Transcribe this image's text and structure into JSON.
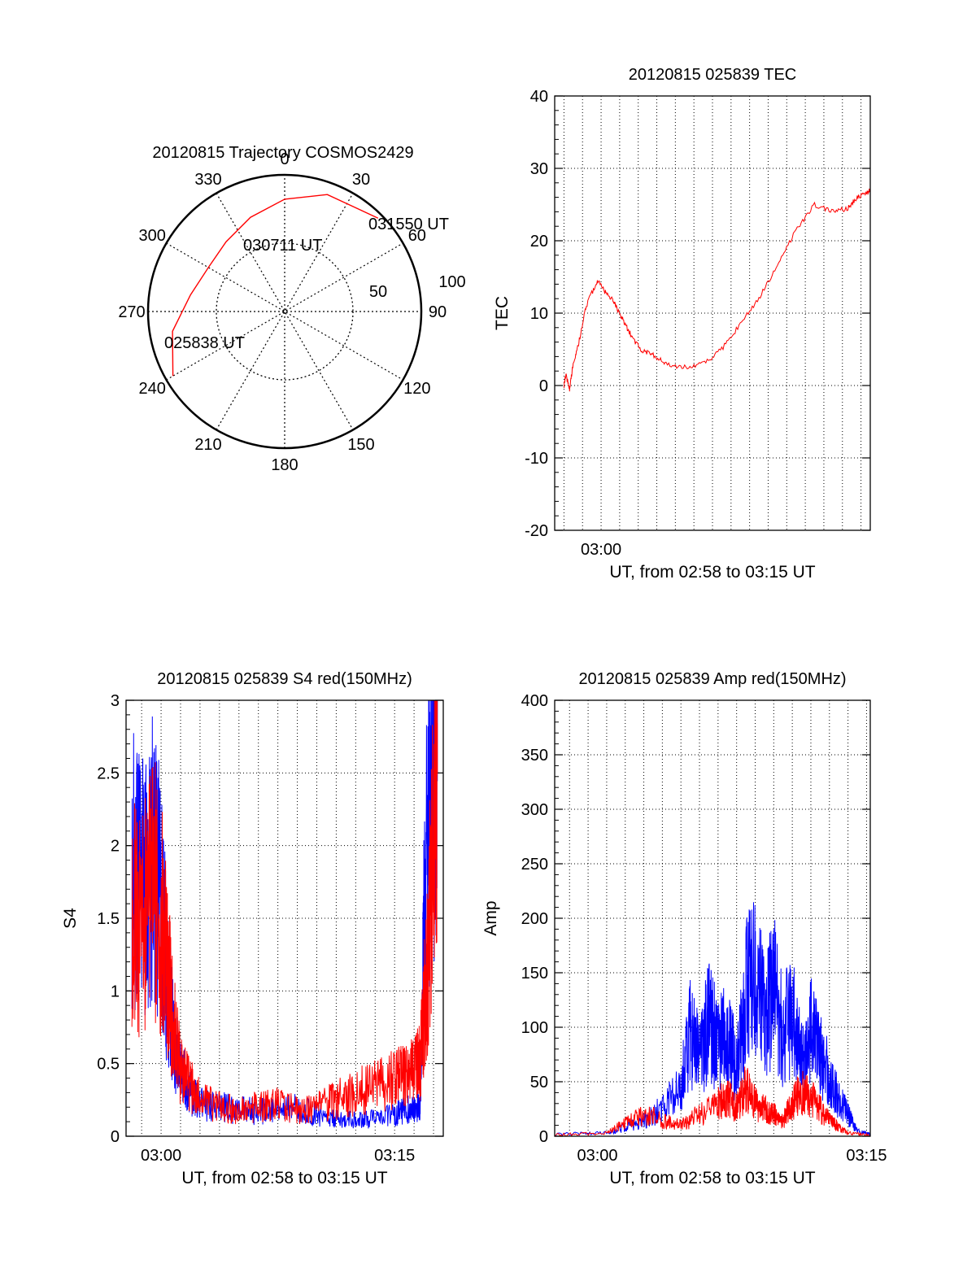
{
  "colors": {
    "red": "#ff0000",
    "blue": "#0000ff",
    "axis": "#000000",
    "grid": "#000000"
  },
  "chart_data": [
    {
      "type": "polar",
      "title": "20120815 Trajectory COSMOS2429",
      "azimuth_labels": [
        "0",
        "30",
        "60",
        "90",
        "120",
        "150",
        "180",
        "210",
        "240",
        "270",
        "300",
        "330"
      ],
      "radius_labels": [
        "50",
        "100"
      ],
      "trajectory": [
        {
          "azimuth": 240,
          "elevation": 5
        },
        {
          "azimuth": 260,
          "elevation": 15
        },
        {
          "azimuth": 280,
          "elevation": 27
        },
        {
          "azimuth": 300,
          "elevation": 32
        },
        {
          "azimuth": 320,
          "elevation": 30
        },
        {
          "azimuth": 340,
          "elevation": 24
        },
        {
          "azimuth": 0,
          "elevation": 16
        },
        {
          "azimuth": 20,
          "elevation": 8
        },
        {
          "azimuth": 45,
          "elevation": 3
        }
      ],
      "annotations": [
        {
          "text": "025838 UT"
        },
        {
          "text": "030711 UT"
        },
        {
          "text": "031550 UT"
        }
      ]
    },
    {
      "type": "line",
      "title": "20120815 025839 TEC",
      "xlabel": "UT, from 02:58 to 03:15 UT",
      "ylabel": "TEC",
      "xlim": [
        2.5,
        19.5
      ],
      "ylim": [
        -20,
        40
      ],
      "yticks": [
        "-20",
        "-10",
        "0",
        "10",
        "20",
        "30",
        "40"
      ],
      "xticks": [
        {
          "x": 5,
          "label": "03:00"
        }
      ],
      "series": [
        {
          "color": "red",
          "x": [
            3.0,
            3.1,
            3.3,
            3.5,
            3.8,
            4.2,
            4.8,
            5.2,
            5.6,
            5.9,
            6.3,
            6.7,
            7.2,
            7.8,
            8.5,
            9.5,
            10.5,
            11.5,
            12.5,
            13.5,
            14.5,
            15.5,
            16.5,
            17.5,
            18.3,
            18.8,
            19.3,
            19.5
          ],
          "y": [
            0.0,
            1.5,
            -0.5,
            3.0,
            6.0,
            11.0,
            14.5,
            13.0,
            12.0,
            10.5,
            8.5,
            6.5,
            4.8,
            4.2,
            3.0,
            2.5,
            3.0,
            5.0,
            8.5,
            12.0,
            16.5,
            21.5,
            25.0,
            24.0,
            24.5,
            26.0,
            26.5,
            27.0
          ]
        }
      ]
    },
    {
      "type": "line",
      "title": "20120815 025839 S4 red(150MHz)",
      "xlabel": "UT, from 02:58 to 03:15 UT",
      "ylabel": "S4",
      "xlim": [
        1.2,
        17.5
      ],
      "ylim": [
        0,
        3
      ],
      "yticks": [
        "0",
        "0.5",
        "1",
        "1.5",
        "2",
        "2.5",
        "3"
      ],
      "xticks": [
        {
          "x": 3,
          "label": "03:00"
        },
        {
          "x": 15,
          "label": "03:15"
        }
      ],
      "series": [
        {
          "color": "blue",
          "x": [
            1.5,
            2.0,
            2.5,
            3.0,
            3.3,
            3.6,
            4.0,
            4.5,
            5.0,
            6.0,
            7.0,
            8.0,
            9.0,
            10.0,
            11.0,
            12.0,
            13.0,
            14.0,
            15.0,
            15.5,
            16.0,
            16.3,
            16.6,
            17.0,
            17.2
          ],
          "y": [
            1.9,
            1.7,
            1.9,
            1.6,
            1.1,
            0.7,
            0.45,
            0.3,
            0.22,
            0.2,
            0.18,
            0.17,
            0.18,
            0.2,
            0.15,
            0.12,
            0.11,
            0.12,
            0.15,
            0.18,
            0.2,
            0.22,
            1.9,
            2.5,
            3.0
          ]
        },
        {
          "color": "red",
          "x": [
            1.5,
            2.0,
            2.5,
            3.0,
            3.3,
            3.6,
            4.0,
            4.5,
            5.0,
            6.0,
            7.0,
            8.0,
            9.0,
            10.0,
            11.0,
            12.0,
            13.0,
            14.0,
            15.0,
            15.5,
            16.0,
            16.3,
            16.6,
            17.0,
            17.2
          ],
          "y": [
            1.6,
            1.4,
            1.8,
            1.5,
            1.2,
            0.8,
            0.45,
            0.35,
            0.25,
            0.2,
            0.18,
            0.2,
            0.22,
            0.18,
            0.2,
            0.25,
            0.3,
            0.35,
            0.4,
            0.42,
            0.45,
            0.5,
            1.0,
            2.0,
            2.5
          ]
        }
      ]
    },
    {
      "type": "line",
      "title": "20120815 025839 Amp red(150MHz)",
      "xlabel": "UT, from 02:58 to 03:15 UT",
      "ylabel": "Amp",
      "xlim": [
        2.2,
        19.2
      ],
      "ylim": [
        0,
        400
      ],
      "yticks": [
        "0",
        "50",
        "100",
        "150",
        "200",
        "250",
        "300",
        "350",
        "400"
      ],
      "xticks": [
        {
          "x": 4.5,
          "label": "03:00"
        },
        {
          "x": 19,
          "label": "03:15"
        }
      ],
      "series": [
        {
          "color": "blue",
          "x": [
            2.2,
            5.0,
            6.0,
            7.0,
            8.0,
            9.0,
            9.5,
            10.0,
            10.5,
            11.0,
            11.5,
            12.0,
            12.5,
            13.0,
            13.5,
            14.0,
            14.5,
            15.0,
            15.5,
            16.0,
            16.5,
            17.0,
            17.5,
            18.0,
            18.5,
            19.2
          ],
          "y": [
            2,
            3,
            8,
            15,
            25,
            45,
            95,
            70,
            110,
            80,
            95,
            60,
            130,
            150,
            110,
            135,
            90,
            120,
            70,
            95,
            75,
            55,
            35,
            20,
            5,
            2
          ]
        },
        {
          "color": "red",
          "x": [
            2.2,
            5.0,
            6.0,
            7.0,
            8.0,
            9.0,
            10.0,
            11.0,
            11.5,
            12.0,
            12.5,
            13.0,
            13.5,
            14.0,
            14.5,
            15.0,
            15.5,
            16.0,
            16.5,
            17.0,
            17.5,
            18.0,
            19.2
          ],
          "y": [
            1,
            3,
            12,
            20,
            15,
            10,
            20,
            30,
            35,
            25,
            45,
            30,
            25,
            20,
            15,
            30,
            40,
            35,
            25,
            15,
            8,
            3,
            1
          ]
        }
      ]
    }
  ]
}
